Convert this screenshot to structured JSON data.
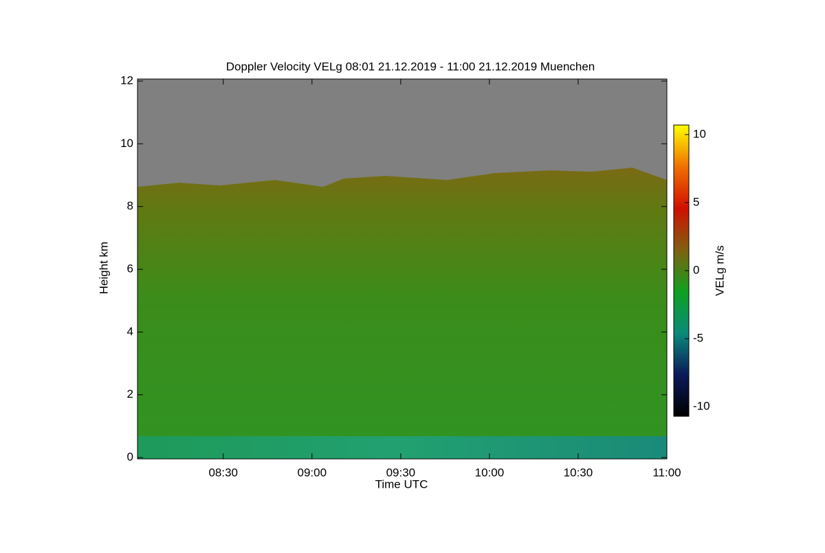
{
  "chart_data": {
    "type": "heatmap",
    "title": "Doppler Velocity VELg   08:01 21.12.2019 - 11:00 21.12.2019 Muenchen",
    "x_label": "Time UTC",
    "y_label": "Height km",
    "colorbar_label": "VELg m/s",
    "xlim": [
      481,
      660
    ],
    "xticks": [
      {
        "value": 510,
        "label": "08:30"
      },
      {
        "value": 540,
        "label": "09:00"
      },
      {
        "value": 570,
        "label": "09:30"
      },
      {
        "value": 600,
        "label": "10:00"
      },
      {
        "value": 630,
        "label": "10:30"
      },
      {
        "value": 660,
        "label": "11:00"
      }
    ],
    "ylim": [
      0,
      12
    ],
    "yticks": [
      0,
      2,
      4,
      6,
      8,
      10,
      12
    ],
    "colorbar_lim": [
      -10.7,
      10.7
    ],
    "colorbar_ticks": [
      -10,
      -5,
      0,
      5,
      10
    ],
    "colormap": [
      "#000000",
      "#0a1a5a",
      "#0a8a7a",
      "#10a020",
      "#806010",
      "#d01000",
      "#f07000",
      "#ffff00"
    ]
  }
}
